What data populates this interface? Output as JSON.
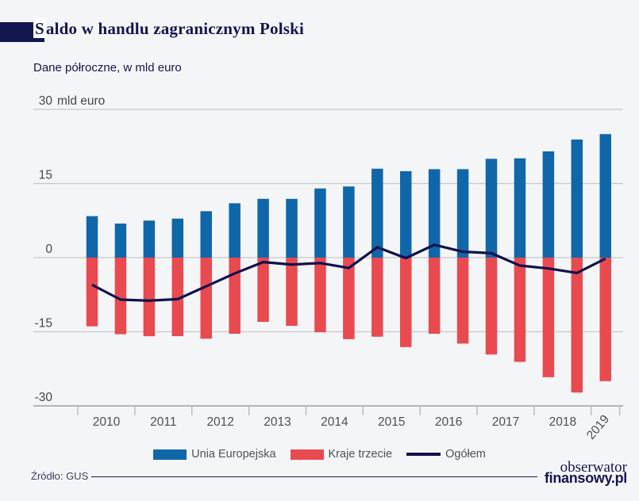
{
  "title": {
    "highlight_letter": "S",
    "rest": "aldo w handlu zagranicznym Polski",
    "full": "Saldo w handlu zagranicznym Polski"
  },
  "subtitle": "Dane półroczne, w mld euro",
  "y_axis": {
    "tick_values": [
      30,
      15,
      0,
      -15,
      -30
    ],
    "tick_labels": [
      "30",
      "15",
      "0",
      "-15",
      "-30"
    ],
    "unit_suffix": "mld euro"
  },
  "x_axis": {
    "year_labels": [
      "2010",
      "2011",
      "2012",
      "2013",
      "2014",
      "2015",
      "2016",
      "2017",
      "2018"
    ],
    "rotated_label": "2019"
  },
  "legend": {
    "items": [
      {
        "label": "Unia Europejska",
        "color": "#0f67a9",
        "type": "bar"
      },
      {
        "label": "Kraje trzecie",
        "color": "#e84a50",
        "type": "bar"
      },
      {
        "label": "Ogółem",
        "color": "#10104e",
        "type": "line"
      }
    ]
  },
  "footer": {
    "source": "Źródło: GUS",
    "logo_line1": "obserwator",
    "logo_line2": "finansowy.pl"
  },
  "colors": {
    "background": "#f4f5f7",
    "navy": "#141650",
    "blue_bar": "#0f67a9",
    "red_bar": "#e84a50",
    "line": "#10104e",
    "gridline": "#c8c8cb",
    "axis_line": "#b5b5ba",
    "axis_text": "#47474a",
    "year_text": "#4f4f52"
  },
  "chart_data": {
    "type": "bar",
    "title": "Saldo w handlu zagranicznym Polski",
    "subtitle": "Dane półroczne, w mld euro",
    "ylabel": "mld euro",
    "ylim": [
      -30,
      30
    ],
    "grid": true,
    "legend_position": "bottom",
    "x": [
      "2010 H1",
      "2010 H2",
      "2011 H1",
      "2011 H2",
      "2012 H1",
      "2012 H2",
      "2013 H1",
      "2013 H2",
      "2014 H1",
      "2014 H2",
      "2015 H1",
      "2015 H2",
      "2016 H1",
      "2016 H2",
      "2017 H1",
      "2017 H2",
      "2018 H1",
      "2018 H2",
      "2019 H1"
    ],
    "series": [
      {
        "name": "Unia Europejska",
        "type": "bar",
        "color": "#0f67a9",
        "values": [
          8.4,
          6.9,
          7.5,
          7.9,
          9.4,
          11.0,
          11.9,
          11.9,
          14.0,
          14.4,
          18.0,
          17.5,
          17.9,
          17.9,
          20.0,
          20.1,
          21.5,
          23.9,
          25.0
        ]
      },
      {
        "name": "Kraje trzecie",
        "type": "bar",
        "color": "#e84a50",
        "values": [
          -13.9,
          -15.5,
          -15.9,
          -15.9,
          -16.4,
          -15.4,
          -13.0,
          -13.8,
          -15.1,
          -16.5,
          -16.0,
          -18.1,
          -15.4,
          -17.4,
          -19.6,
          -21.1,
          -24.2,
          -27.3,
          -25.0
        ]
      },
      {
        "name": "Ogółem",
        "type": "line",
        "color": "#10104e",
        "values": [
          -5.5,
          -8.5,
          -8.7,
          -8.4,
          -5.8,
          -3.2,
          -0.9,
          -1.4,
          -1.1,
          -2.1,
          2.1,
          -0.1,
          2.6,
          1.2,
          0.9,
          -1.6,
          -2.2,
          -3.1,
          -0.2
        ]
      }
    ]
  }
}
